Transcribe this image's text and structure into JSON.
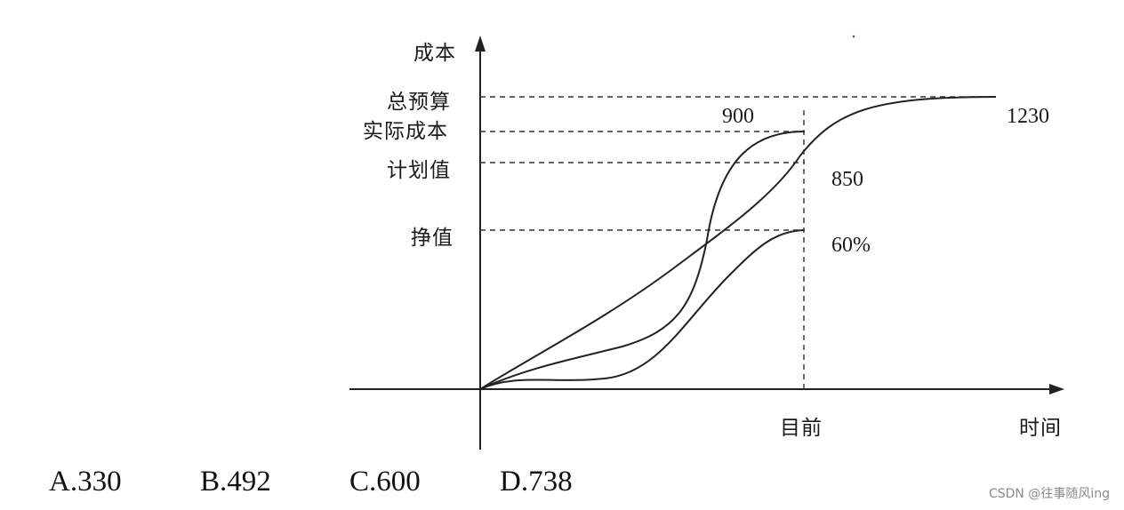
{
  "diagram": {
    "y_axis_label": "成本",
    "x_axis_label": "时间",
    "levels": {
      "total_budget": "总预算",
      "actual_cost": "实际成本",
      "planned_value": "计划值",
      "earned_value": "挣值"
    },
    "current_time_label": "目前",
    "values": {
      "actual_cost": "900",
      "total_budget": "1230",
      "planned_value": "850",
      "earned_percent": "60%"
    },
    "curves": [
      "total-budget-curve",
      "actual-cost-curve",
      "earned-value-curve"
    ]
  },
  "options": [
    "A.330",
    "B.492",
    "C.600",
    "D.738"
  ],
  "watermark": "CSDN @往事随风ing"
}
